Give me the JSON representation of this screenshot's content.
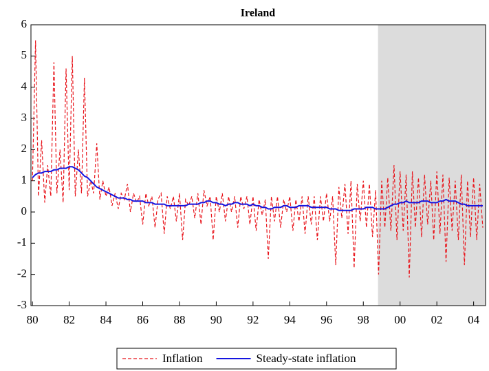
{
  "chart_data": {
    "type": "line",
    "title": "Ireland",
    "x": [
      1980,
      1980.17,
      1980.33,
      1980.5,
      1980.67,
      1980.83,
      1981,
      1981.17,
      1981.33,
      1981.5,
      1981.67,
      1981.83,
      1982,
      1982.17,
      1982.33,
      1982.5,
      1982.67,
      1982.83,
      1983,
      1983.17,
      1983.33,
      1983.5,
      1983.67,
      1983.83,
      1984,
      1984.17,
      1984.33,
      1984.5,
      1984.67,
      1984.83,
      1985,
      1985.17,
      1985.33,
      1985.5,
      1985.67,
      1985.83,
      1986,
      1986.17,
      1986.33,
      1986.5,
      1986.67,
      1986.83,
      1987,
      1987.17,
      1987.33,
      1987.5,
      1987.67,
      1987.83,
      1988,
      1988.17,
      1988.33,
      1988.5,
      1988.67,
      1988.83,
      1989,
      1989.17,
      1989.33,
      1989.5,
      1989.67,
      1989.83,
      1990,
      1990.17,
      1990.33,
      1990.5,
      1990.67,
      1990.83,
      1991,
      1991.17,
      1991.33,
      1991.5,
      1991.67,
      1991.83,
      1992,
      1992.17,
      1992.33,
      1992.5,
      1992.67,
      1992.83,
      1993,
      1993.17,
      1993.33,
      1993.5,
      1993.67,
      1993.83,
      1994,
      1994.17,
      1994.33,
      1994.5,
      1994.67,
      1994.83,
      1995,
      1995.17,
      1995.33,
      1995.5,
      1995.67,
      1995.83,
      1996,
      1996.17,
      1996.33,
      1996.5,
      1996.67,
      1996.83,
      1997,
      1997.17,
      1997.33,
      1997.5,
      1997.67,
      1997.83,
      1998,
      1998.17,
      1998.33,
      1998.5,
      1998.67,
      1998.83,
      1999,
      1999.17,
      1999.33,
      1999.5,
      1999.67,
      1999.83,
      2000,
      2000.17,
      2000.33,
      2000.5,
      2000.67,
      2000.83,
      2001,
      2001.17,
      2001.33,
      2001.5,
      2001.67,
      2001.83,
      2002,
      2002.17,
      2002.33,
      2002.5,
      2002.67,
      2002.83,
      2003,
      2003.17,
      2003.33,
      2003.5,
      2003.67,
      2003.83,
      2004,
      2004.17,
      2004.33,
      2004.5
    ],
    "series": [
      {
        "name": "Inflation",
        "color": "#e8141b",
        "dash": true,
        "values": [
          1.0,
          5.5,
          0.5,
          2.3,
          0.3,
          1.5,
          0.5,
          4.8,
          0.6,
          2.0,
          0.3,
          4.6,
          0.7,
          5.0,
          0.5,
          2.0,
          0.6,
          4.3,
          0.5,
          1.0,
          0.6,
          2.2,
          0.4,
          1.0,
          0.5,
          0.8,
          0.2,
          0.6,
          0.1,
          0.6,
          0.4,
          0.9,
          0.0,
          0.6,
          0.3,
          0.5,
          -0.4,
          0.6,
          0.2,
          0.5,
          -0.5,
          0.4,
          0.6,
          -0.7,
          0.5,
          0.1,
          0.5,
          -0.3,
          0.6,
          -0.9,
          0.4,
          0.2,
          0.5,
          -0.2,
          0.6,
          -0.4,
          0.7,
          0.2,
          0.5,
          -0.9,
          0.5,
          0.0,
          0.6,
          -0.3,
          0.5,
          0.0,
          0.5,
          -0.5,
          0.5,
          0.1,
          0.5,
          -0.4,
          0.5,
          -0.6,
          0.4,
          -0.1,
          0.4,
          -1.5,
          0.5,
          -0.3,
          0.5,
          -0.5,
          0.4,
          0.0,
          0.5,
          -0.6,
          0.4,
          -0.3,
          0.5,
          -0.7,
          0.5,
          -0.4,
          0.5,
          -0.9,
          0.5,
          -0.3,
          0.6,
          -0.3,
          0.5,
          -1.7,
          0.8,
          -0.2,
          0.9,
          -0.7,
          1.0,
          -1.8,
          0.9,
          -0.3,
          1.0,
          -0.5,
          0.9,
          -0.8,
          0.7,
          -2.0,
          1.0,
          -0.5,
          1.1,
          -0.6,
          1.5,
          -0.9,
          1.3,
          -0.6,
          1.2,
          -2.1,
          1.3,
          -0.5,
          1.1,
          -0.8,
          1.2,
          -0.4,
          1.0,
          -0.9,
          1.3,
          -0.7,
          1.2,
          -1.6,
          1.1,
          -0.6,
          1.0,
          -0.9,
          1.2,
          -1.7,
          1.0,
          -0.8,
          1.1,
          -0.9,
          0.9,
          -0.5
        ]
      },
      {
        "name": "Steady-state inflation",
        "color": "#1414e0",
        "dash": false,
        "values": [
          1.1,
          1.2,
          1.25,
          1.25,
          1.3,
          1.3,
          1.3,
          1.35,
          1.35,
          1.4,
          1.4,
          1.4,
          1.45,
          1.45,
          1.4,
          1.35,
          1.25,
          1.15,
          1.1,
          1.0,
          0.9,
          0.8,
          0.75,
          0.7,
          0.65,
          0.6,
          0.55,
          0.5,
          0.45,
          0.45,
          0.45,
          0.4,
          0.4,
          0.35,
          0.35,
          0.35,
          0.35,
          0.3,
          0.3,
          0.3,
          0.25,
          0.25,
          0.25,
          0.25,
          0.2,
          0.2,
          0.2,
          0.2,
          0.2,
          0.2,
          0.2,
          0.25,
          0.25,
          0.25,
          0.25,
          0.3,
          0.3,
          0.35,
          0.35,
          0.3,
          0.3,
          0.25,
          0.25,
          0.2,
          0.25,
          0.25,
          0.3,
          0.3,
          0.25,
          0.25,
          0.25,
          0.2,
          0.25,
          0.2,
          0.2,
          0.15,
          0.15,
          0.1,
          0.1,
          0.15,
          0.15,
          0.15,
          0.2,
          0.2,
          0.15,
          0.15,
          0.15,
          0.2,
          0.2,
          0.2,
          0.2,
          0.15,
          0.15,
          0.15,
          0.15,
          0.15,
          0.15,
          0.1,
          0.1,
          0.1,
          0.05,
          0.05,
          0.05,
          0.05,
          0.05,
          0.1,
          0.1,
          0.1,
          0.1,
          0.15,
          0.15,
          0.15,
          0.1,
          0.1,
          0.1,
          0.1,
          0.15,
          0.2,
          0.25,
          0.25,
          0.3,
          0.3,
          0.35,
          0.3,
          0.3,
          0.3,
          0.3,
          0.35,
          0.35,
          0.35,
          0.3,
          0.3,
          0.3,
          0.35,
          0.35,
          0.4,
          0.35,
          0.35,
          0.35,
          0.3,
          0.25,
          0.25,
          0.2,
          0.2,
          0.2,
          0.2,
          0.2,
          0.2
        ]
      }
    ],
    "xlim": [
      1979.92,
      2004.65
    ],
    "ylim": [
      -3,
      6
    ],
    "yticks": [
      -3,
      -2,
      -1,
      0,
      1,
      2,
      3,
      4,
      5,
      6
    ],
    "xticks": [
      {
        "value": 1980,
        "label": "80"
      },
      {
        "value": 1982,
        "label": "82"
      },
      {
        "value": 1984,
        "label": "84"
      },
      {
        "value": 1986,
        "label": "86"
      },
      {
        "value": 1988,
        "label": "88"
      },
      {
        "value": 1990,
        "label": "90"
      },
      {
        "value": 1992,
        "label": "92"
      },
      {
        "value": 1994,
        "label": "94"
      },
      {
        "value": 1996,
        "label": "96"
      },
      {
        "value": 1998,
        "label": "98"
      },
      {
        "value": 2000,
        "label": "00"
      },
      {
        "value": 2002,
        "label": "02"
      },
      {
        "value": 2004,
        "label": "04"
      }
    ],
    "shade": [
      1998.8,
      2004.65
    ],
    "shade_color": "#dcdcdc",
    "legend": "bottom"
  }
}
